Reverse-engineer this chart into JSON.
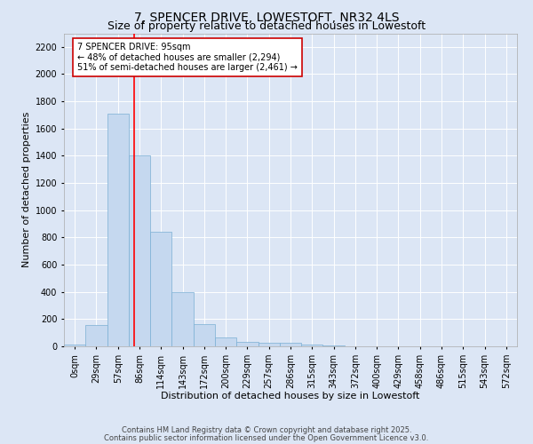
{
  "title": "7, SPENCER DRIVE, LOWESTOFT, NR32 4LS",
  "subtitle": "Size of property relative to detached houses in Lowestoft",
  "xlabel": "Distribution of detached houses by size in Lowestoft",
  "ylabel": "Number of detached properties",
  "bar_labels": [
    "0sqm",
    "29sqm",
    "57sqm",
    "86sqm",
    "114sqm",
    "143sqm",
    "172sqm",
    "200sqm",
    "229sqm",
    "257sqm",
    "286sqm",
    "315sqm",
    "343sqm",
    "372sqm",
    "400sqm",
    "429sqm",
    "458sqm",
    "486sqm",
    "515sqm",
    "543sqm",
    "572sqm"
  ],
  "bar_values": [
    15,
    155,
    1710,
    1400,
    840,
    395,
    160,
    65,
    35,
    25,
    25,
    10,
    5,
    0,
    0,
    0,
    0,
    0,
    0,
    0,
    0
  ],
  "bar_color": "#c5d8ef",
  "bar_edge_color": "#7aafd4",
  "bar_width": 1.0,
  "ylim": [
    0,
    2300
  ],
  "yticks": [
    0,
    200,
    400,
    600,
    800,
    1000,
    1200,
    1400,
    1600,
    1800,
    2000,
    2200
  ],
  "red_line_x": 3.27,
  "annotation_text": "7 SPENCER DRIVE: 95sqm\n← 48% of detached houses are smaller (2,294)\n51% of semi-detached houses are larger (2,461) →",
  "annotation_box_color": "#ffffff",
  "annotation_box_edge": "#cc0000",
  "background_color": "#dce6f5",
  "plot_bg_color": "#dce6f5",
  "footer_line1": "Contains HM Land Registry data © Crown copyright and database right 2025.",
  "footer_line2": "Contains public sector information licensed under the Open Government Licence v3.0.",
  "title_fontsize": 10,
  "subtitle_fontsize": 9,
  "axis_label_fontsize": 8,
  "tick_fontsize": 7,
  "annotation_fontsize": 7,
  "footer_fontsize": 6
}
